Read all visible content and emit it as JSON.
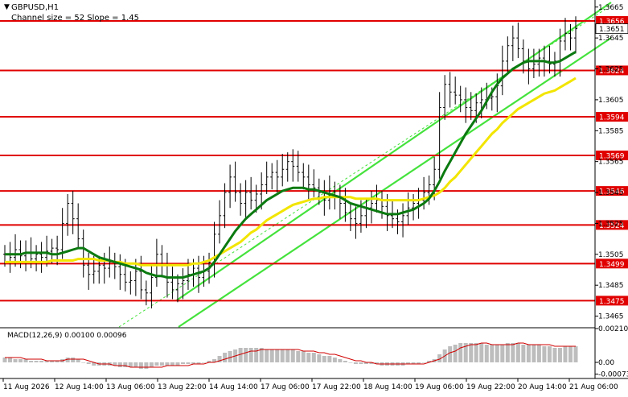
{
  "chart_data": {
    "type": "line",
    "symbol": "GBPUSD,H1",
    "subtitle": "Channel size = 52 Slope = 1.45",
    "price_axis": {
      "range": [
        1.3458,
        1.3668
      ],
      "ticks": [
        "1.3665",
        "1.3645",
        "1.3625",
        "1.3605",
        "1.3585",
        "1.3565",
        "1.3545",
        "1.3525",
        "1.3505",
        "1.3485",
        "1.3465"
      ]
    },
    "levels": [
      {
        "value": 1.3656,
        "label": "1.3656"
      },
      {
        "value": 1.3624,
        "label": "1.3624"
      },
      {
        "value": 1.3594,
        "label": "1.3594"
      },
      {
        "value": 1.3569,
        "label": "1.3569"
      },
      {
        "value": 1.3546,
        "label": "1.3546"
      },
      {
        "value": 1.3524,
        "label": "1.3524"
      },
      {
        "value": 1.3499,
        "label": "1.3499"
      },
      {
        "value": 1.3475,
        "label": "1.3475"
      }
    ],
    "current_price": {
      "value": 1.3651,
      "label": "1.3651"
    },
    "time_axis": [
      "11 Aug 2026",
      "12 Aug 14:00",
      "13 Aug 06:00",
      "13 Aug 22:00",
      "14 Aug 14:00",
      "17 Aug 06:00",
      "17 Aug 22:00",
      "18 Aug 14:00",
      "19 Aug 06:00",
      "19 Aug 22:00",
      "20 Aug 14:00",
      "21 Aug 06:00"
    ],
    "close": [
      1.3505,
      1.3503,
      1.3508,
      1.3504,
      1.3506,
      1.3502,
      1.3505,
      1.3503,
      1.3507,
      1.3509,
      1.3508,
      1.3525,
      1.3538,
      1.3528,
      1.3515,
      1.3498,
      1.3492,
      1.3494,
      1.3498,
      1.3496,
      1.35,
      1.3497,
      1.3492,
      1.3487,
      1.3488,
      1.3494,
      1.3482,
      1.348,
      1.349,
      1.3505,
      1.3498,
      1.3487,
      1.3482,
      1.3486,
      1.3488,
      1.3492,
      1.3496,
      1.349,
      1.3494,
      1.35,
      1.3518,
      1.353,
      1.3545,
      1.3555,
      1.3545,
      1.3538,
      1.3545,
      1.354,
      1.3544,
      1.355,
      1.3555,
      1.3558,
      1.3555,
      1.356,
      1.3565,
      1.3562,
      1.3558,
      1.3555,
      1.355,
      1.3548,
      1.3545,
      1.354,
      1.3546,
      1.3542,
      1.3538,
      1.3532,
      1.3528,
      1.3525,
      1.353,
      1.3535,
      1.3538,
      1.354,
      1.3536,
      1.353,
      1.3528,
      1.3526,
      1.353,
      1.3535,
      1.3538,
      1.354,
      1.3545,
      1.355,
      1.356,
      1.36,
      1.3615,
      1.361,
      1.3608,
      1.3605,
      1.36,
      1.3598,
      1.3603,
      1.3605,
      1.3606,
      1.3607,
      1.3614,
      1.363,
      1.364,
      1.3645,
      1.3638,
      1.363,
      1.3625,
      1.3628,
      1.3632,
      1.363,
      1.3628,
      1.363,
      1.3643,
      1.3648,
      1.3645,
      1.3651
    ],
    "ma_green": [
      1.3505,
      1.3505,
      1.3505,
      1.3505,
      1.3506,
      1.3506,
      1.3506,
      1.3506,
      1.3506,
      1.3505,
      1.3505,
      1.3506,
      1.3507,
      1.3508,
      1.3509,
      1.3509,
      1.3507,
      1.3505,
      1.3503,
      1.3502,
      1.3501,
      1.35,
      1.3499,
      1.3498,
      1.3497,
      1.3496,
      1.3495,
      1.3493,
      1.3492,
      1.3491,
      1.3491,
      1.349,
      1.349,
      1.349,
      1.349,
      1.3491,
      1.3492,
      1.3493,
      1.3494,
      1.3496,
      1.35,
      1.3505,
      1.351,
      1.3515,
      1.352,
      1.3524,
      1.3528,
      1.3531,
      1.3534,
      1.3537,
      1.354,
      1.3542,
      1.3544,
      1.3546,
      1.3547,
      1.3548,
      1.3548,
      1.3548,
      1.3547,
      1.3547,
      1.3546,
      1.3545,
      1.3544,
      1.3543,
      1.3542,
      1.354,
      1.3538,
      1.3537,
      1.3536,
      1.3535,
      1.3534,
      1.3533,
      1.3532,
      1.3531,
      1.3531,
      1.3531,
      1.3532,
      1.3533,
      1.3534,
      1.3536,
      1.3538,
      1.3541,
      1.3546,
      1.3552,
      1.3559,
      1.3565,
      1.3571,
      1.3577,
      1.3583,
      1.3588,
      1.3593,
      1.3598,
      1.3604,
      1.361,
      1.3615,
      1.3619,
      1.3622,
      1.3625,
      1.3627,
      1.3629,
      1.363,
      1.363,
      1.363,
      1.363,
      1.3629,
      1.3629,
      1.363,
      1.3632,
      1.3634,
      1.3636
    ],
    "ma_yellow": [
      1.35,
      1.35,
      1.35,
      1.35,
      1.35,
      1.35,
      1.35,
      1.35,
      1.35,
      1.3501,
      1.3501,
      1.3501,
      1.3501,
      1.3501,
      1.3502,
      1.3502,
      1.3502,
      1.3502,
      1.3501,
      1.3501,
      1.3501,
      1.35,
      1.35,
      1.3499,
      1.3499,
      1.3499,
      1.3498,
      1.3498,
      1.3498,
      1.3498,
      1.3498,
      1.3498,
      1.3498,
      1.3498,
      1.3498,
      1.3498,
      1.3499,
      1.3499,
      1.35,
      1.3501,
      1.3503,
      1.3505,
      1.3507,
      1.3509,
      1.3511,
      1.3513,
      1.3516,
      1.3519,
      1.3521,
      1.3524,
      1.3527,
      1.3529,
      1.3531,
      1.3533,
      1.3535,
      1.3537,
      1.3538,
      1.3539,
      1.354,
      1.3541,
      1.3541,
      1.3542,
      1.3542,
      1.3542,
      1.3542,
      1.3542,
      1.3542,
      1.3541,
      1.3541,
      1.3541,
      1.3541,
      1.3541,
      1.354,
      1.354,
      1.354,
      1.354,
      1.354,
      1.354,
      1.354,
      1.354,
      1.3541,
      1.3542,
      1.3543,
      1.3545,
      1.3548,
      1.3552,
      1.3555,
      1.3559,
      1.3563,
      1.3567,
      1.3571,
      1.3575,
      1.3579,
      1.3583,
      1.3586,
      1.359,
      1.3593,
      1.3596,
      1.3599,
      1.3601,
      1.3603,
      1.3605,
      1.3607,
      1.3609,
      1.361,
      1.3611,
      1.3613,
      1.3615,
      1.3617,
      1.3619
    ],
    "channel_lines": [
      {
        "name": "upper",
        "from": [
          0.296,
          1.3475
        ],
        "to": [
          1.027,
          1.3668
        ]
      },
      {
        "name": "lower",
        "from": [
          0.3,
          1.3458
        ],
        "to": [
          1.027,
          1.3645
        ]
      },
      {
        "name": "middle",
        "from": [
          0.2,
          1.3458
        ],
        "to": [
          1.027,
          1.3666
        ]
      }
    ],
    "macd": {
      "label": "MACD(12,26,9) 0.00100 0.00096",
      "range": [
        -0.00085,
        0.00215
      ],
      "ticks": [
        "0.00210",
        "0.00",
        "-0.00073"
      ],
      "hist": [
        0.0003,
        0.0003,
        0.0002,
        0.0002,
        0.0002,
        0.0001,
        0.0001,
        0.0001,
        0.0001,
        0.0001,
        0.0001,
        0.0002,
        0.0003,
        0.0003,
        0.0002,
        0.0,
        -0.0001,
        -0.0002,
        -0.0002,
        -0.0002,
        -0.0002,
        -0.0002,
        -0.0003,
        -0.0003,
        -0.0003,
        -0.0003,
        -0.0004,
        -0.0004,
        -0.0003,
        -0.0002,
        -0.0002,
        -0.0002,
        -0.0002,
        -0.0002,
        -0.0001,
        -0.0001,
        -0.0001,
        -0.0001,
        0.0,
        0.0001,
        0.0002,
        0.0004,
        0.0006,
        0.0007,
        0.0008,
        0.0009,
        0.0009,
        0.0009,
        0.0009,
        0.0009,
        0.0008,
        0.0008,
        0.0008,
        0.0008,
        0.0008,
        0.0008,
        0.0007,
        0.0007,
        0.0006,
        0.0006,
        0.0005,
        0.0004,
        0.0004,
        0.0003,
        0.0002,
        0.0001,
        0.0,
        -0.0001,
        -0.0001,
        -0.0001,
        -0.0001,
        -0.0001,
        -0.0002,
        -0.0002,
        -0.0002,
        -0.0002,
        -0.0002,
        -0.0001,
        -0.0001,
        -0.0001,
        0.0,
        0.0001,
        0.0002,
        0.0005,
        0.0008,
        0.001,
        0.0011,
        0.0012,
        0.0012,
        0.0012,
        0.0012,
        0.0012,
        0.0011,
        0.0011,
        0.0011,
        0.0011,
        0.0012,
        0.0012,
        0.0012,
        0.0011,
        0.0011,
        0.0011,
        0.0011,
        0.001,
        0.001,
        0.0009,
        0.0009,
        0.001,
        0.001,
        0.001
      ],
      "signal": [
        0.0003,
        0.0003,
        0.0003,
        0.0003,
        0.0002,
        0.0002,
        0.0002,
        0.0002,
        0.0001,
        0.0001,
        0.0001,
        0.0001,
        0.0002,
        0.0002,
        0.0002,
        0.0002,
        0.0001,
        0.0,
        -0.0001,
        -0.0001,
        -0.0001,
        -0.0002,
        -0.0002,
        -0.0002,
        -0.0003,
        -0.0003,
        -0.0003,
        -0.0003,
        -0.0003,
        -0.0003,
        -0.0003,
        -0.0002,
        -0.0002,
        -0.0002,
        -0.0002,
        -0.0002,
        -0.0001,
        -0.0001,
        -0.0001,
        0.0,
        0.0,
        0.0001,
        0.0002,
        0.0003,
        0.0004,
        0.0005,
        0.0006,
        0.0007,
        0.0007,
        0.0008,
        0.0008,
        0.0008,
        0.0008,
        0.0008,
        0.0008,
        0.0008,
        0.0008,
        0.0007,
        0.0007,
        0.0007,
        0.0006,
        0.0006,
        0.0005,
        0.0005,
        0.0004,
        0.0003,
        0.0002,
        0.0001,
        0.0001,
        0.0,
        0.0,
        -0.0001,
        -0.0001,
        -0.0001,
        -0.0001,
        -0.0001,
        -0.0001,
        -0.0001,
        -0.0001,
        -0.0001,
        -0.0001,
        0.0,
        0.0001,
        0.0002,
        0.0004,
        0.0006,
        0.0007,
        0.0009,
        0.001,
        0.0011,
        0.0011,
        0.0012,
        0.0012,
        0.0011,
        0.0011,
        0.0011,
        0.0011,
        0.0011,
        0.0012,
        0.0012,
        0.0011,
        0.0011,
        0.0011,
        0.0011,
        0.0011,
        0.001,
        0.001,
        0.001,
        0.001,
        0.001
      ]
    }
  }
}
